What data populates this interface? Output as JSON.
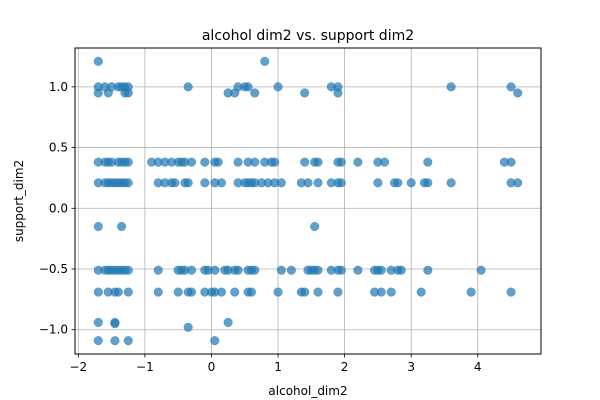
{
  "chart_data": {
    "type": "scatter",
    "title": "alcohol dim2 vs. support dim2",
    "xlabel": "alcohol_dim2",
    "ylabel": "support_dim2",
    "xlim": [
      -2.05,
      4.95
    ],
    "ylim": [
      -1.2,
      1.32
    ],
    "xticks": [
      -2,
      -1,
      0,
      1,
      2,
      3,
      4
    ],
    "yticks": [
      -1.0,
      -0.5,
      0.0,
      0.5,
      1.0
    ],
    "xtick_labels": [
      "−2",
      "−1",
      "0",
      "1",
      "2",
      "3",
      "4"
    ],
    "ytick_labels": [
      "−1.0",
      "−0.5",
      "0.0",
      "0.5",
      "1.0"
    ],
    "grid": true,
    "marker_color": "#1f77b4",
    "marker_alpha": 0.7,
    "points": [
      {
        "x": -1.7,
        "y": 1.21
      },
      {
        "x": -1.7,
        "y": 1.0
      },
      {
        "x": -1.7,
        "y": 0.95
      },
      {
        "x": -1.6,
        "y": 1.0
      },
      {
        "x": -1.55,
        "y": 0.95
      },
      {
        "x": -1.5,
        "y": 1.0
      },
      {
        "x": -1.4,
        "y": 1.0
      },
      {
        "x": -1.35,
        "y": 1.0
      },
      {
        "x": -1.3,
        "y": 0.95
      },
      {
        "x": -1.3,
        "y": 1.0
      },
      {
        "x": -1.25,
        "y": 0.95
      },
      {
        "x": -1.25,
        "y": 1.0
      },
      {
        "x": -0.35,
        "y": 1.0
      },
      {
        "x": 0.25,
        "y": 0.95
      },
      {
        "x": 0.35,
        "y": 0.95
      },
      {
        "x": 0.4,
        "y": 1.0
      },
      {
        "x": 0.5,
        "y": 1.0
      },
      {
        "x": 0.55,
        "y": 1.0
      },
      {
        "x": 0.65,
        "y": 0.95
      },
      {
        "x": 0.8,
        "y": 1.21
      },
      {
        "x": 1.0,
        "y": 1.0
      },
      {
        "x": 1.4,
        "y": 0.95
      },
      {
        "x": 1.8,
        "y": 1.0
      },
      {
        "x": 1.9,
        "y": 0.95
      },
      {
        "x": 1.9,
        "y": 1.0
      },
      {
        "x": 3.6,
        "y": 1.0
      },
      {
        "x": 4.5,
        "y": 1.0
      },
      {
        "x": 4.6,
        "y": 0.95
      },
      {
        "x": -1.7,
        "y": 0.38
      },
      {
        "x": -1.6,
        "y": 0.38
      },
      {
        "x": -1.55,
        "y": 0.38
      },
      {
        "x": -1.5,
        "y": 0.38
      },
      {
        "x": -1.4,
        "y": 0.38
      },
      {
        "x": -1.35,
        "y": 0.38
      },
      {
        "x": -1.3,
        "y": 0.38
      },
      {
        "x": -1.25,
        "y": 0.38
      },
      {
        "x": -0.9,
        "y": 0.38
      },
      {
        "x": -0.8,
        "y": 0.38
      },
      {
        "x": -0.7,
        "y": 0.38
      },
      {
        "x": -0.6,
        "y": 0.38
      },
      {
        "x": -0.5,
        "y": 0.38
      },
      {
        "x": -0.45,
        "y": 0.38
      },
      {
        "x": -0.4,
        "y": 0.38
      },
      {
        "x": -0.3,
        "y": 0.38
      },
      {
        "x": -0.1,
        "y": 0.38
      },
      {
        "x": 0.05,
        "y": 0.38
      },
      {
        "x": 0.1,
        "y": 0.38
      },
      {
        "x": 0.4,
        "y": 0.38
      },
      {
        "x": 0.55,
        "y": 0.38
      },
      {
        "x": 0.65,
        "y": 0.38
      },
      {
        "x": 0.8,
        "y": 0.38
      },
      {
        "x": 0.9,
        "y": 0.38
      },
      {
        "x": 0.95,
        "y": 0.38
      },
      {
        "x": 1.4,
        "y": 0.38
      },
      {
        "x": 1.55,
        "y": 0.38
      },
      {
        "x": 1.6,
        "y": 0.38
      },
      {
        "x": 1.9,
        "y": 0.38
      },
      {
        "x": 1.95,
        "y": 0.38
      },
      {
        "x": 2.2,
        "y": 0.38
      },
      {
        "x": 2.5,
        "y": 0.38
      },
      {
        "x": 2.6,
        "y": 0.38
      },
      {
        "x": 3.25,
        "y": 0.38
      },
      {
        "x": 4.4,
        "y": 0.38
      },
      {
        "x": 4.5,
        "y": 0.38
      },
      {
        "x": -1.7,
        "y": 0.21
      },
      {
        "x": -1.6,
        "y": 0.21
      },
      {
        "x": -1.55,
        "y": 0.21
      },
      {
        "x": -1.5,
        "y": 0.21
      },
      {
        "x": -1.45,
        "y": 0.21
      },
      {
        "x": -1.4,
        "y": 0.21
      },
      {
        "x": -1.35,
        "y": 0.21
      },
      {
        "x": -1.3,
        "y": 0.21
      },
      {
        "x": -1.25,
        "y": 0.21
      },
      {
        "x": -0.8,
        "y": 0.21
      },
      {
        "x": -0.7,
        "y": 0.21
      },
      {
        "x": -0.6,
        "y": 0.21
      },
      {
        "x": -0.55,
        "y": 0.21
      },
      {
        "x": -0.4,
        "y": 0.21
      },
      {
        "x": -0.35,
        "y": 0.21
      },
      {
        "x": -0.1,
        "y": 0.21
      },
      {
        "x": 0.05,
        "y": 0.21
      },
      {
        "x": 0.15,
        "y": 0.21
      },
      {
        "x": 0.4,
        "y": 0.21
      },
      {
        "x": 0.5,
        "y": 0.21
      },
      {
        "x": 0.55,
        "y": 0.21
      },
      {
        "x": 0.6,
        "y": 0.21
      },
      {
        "x": 0.65,
        "y": 0.21
      },
      {
        "x": 0.75,
        "y": 0.21
      },
      {
        "x": 0.85,
        "y": 0.21
      },
      {
        "x": 0.95,
        "y": 0.21
      },
      {
        "x": 1.05,
        "y": 0.21
      },
      {
        "x": 1.35,
        "y": 0.21
      },
      {
        "x": 1.45,
        "y": 0.21
      },
      {
        "x": 1.6,
        "y": 0.21
      },
      {
        "x": 1.8,
        "y": 0.21
      },
      {
        "x": 1.9,
        "y": 0.21
      },
      {
        "x": 1.95,
        "y": 0.21
      },
      {
        "x": 2.5,
        "y": 0.21
      },
      {
        "x": 2.75,
        "y": 0.21
      },
      {
        "x": 2.8,
        "y": 0.21
      },
      {
        "x": 3.0,
        "y": 0.21
      },
      {
        "x": 3.2,
        "y": 0.21
      },
      {
        "x": 3.25,
        "y": 0.21
      },
      {
        "x": 3.6,
        "y": 0.21
      },
      {
        "x": 4.5,
        "y": 0.21
      },
      {
        "x": 4.6,
        "y": 0.21
      },
      {
        "x": -1.7,
        "y": -0.15
      },
      {
        "x": -1.35,
        "y": -0.15
      },
      {
        "x": 1.55,
        "y": -0.15
      },
      {
        "x": -1.7,
        "y": -0.51
      },
      {
        "x": -1.6,
        "y": -0.51
      },
      {
        "x": -1.55,
        "y": -0.51
      },
      {
        "x": -1.5,
        "y": -0.51
      },
      {
        "x": -1.45,
        "y": -0.51
      },
      {
        "x": -1.4,
        "y": -0.51
      },
      {
        "x": -1.35,
        "y": -0.51
      },
      {
        "x": -1.3,
        "y": -0.51
      },
      {
        "x": -1.25,
        "y": -0.51
      },
      {
        "x": -0.8,
        "y": -0.51
      },
      {
        "x": -0.5,
        "y": -0.51
      },
      {
        "x": -0.45,
        "y": -0.51
      },
      {
        "x": -0.4,
        "y": -0.51
      },
      {
        "x": -0.3,
        "y": -0.51
      },
      {
        "x": -0.1,
        "y": -0.51
      },
      {
        "x": -0.05,
        "y": -0.51
      },
      {
        "x": 0.05,
        "y": -0.51
      },
      {
        "x": 0.2,
        "y": -0.51
      },
      {
        "x": 0.25,
        "y": -0.51
      },
      {
        "x": 0.35,
        "y": -0.51
      },
      {
        "x": 0.4,
        "y": -0.51
      },
      {
        "x": 0.55,
        "y": -0.51
      },
      {
        "x": 0.6,
        "y": -0.51
      },
      {
        "x": 0.65,
        "y": -0.51
      },
      {
        "x": 1.05,
        "y": -0.51
      },
      {
        "x": 1.2,
        "y": -0.51
      },
      {
        "x": 1.45,
        "y": -0.51
      },
      {
        "x": 1.5,
        "y": -0.51
      },
      {
        "x": 1.55,
        "y": -0.51
      },
      {
        "x": 1.6,
        "y": -0.51
      },
      {
        "x": 1.8,
        "y": -0.51
      },
      {
        "x": 1.9,
        "y": -0.51
      },
      {
        "x": 1.95,
        "y": -0.51
      },
      {
        "x": 2.2,
        "y": -0.51
      },
      {
        "x": 2.45,
        "y": -0.51
      },
      {
        "x": 2.5,
        "y": -0.51
      },
      {
        "x": 2.55,
        "y": -0.51
      },
      {
        "x": 2.7,
        "y": -0.51
      },
      {
        "x": 2.8,
        "y": -0.51
      },
      {
        "x": 2.85,
        "y": -0.51
      },
      {
        "x": 3.25,
        "y": -0.51
      },
      {
        "x": 4.05,
        "y": -0.51
      },
      {
        "x": -1.7,
        "y": -0.69
      },
      {
        "x": -1.55,
        "y": -0.69
      },
      {
        "x": -1.45,
        "y": -0.69
      },
      {
        "x": -1.4,
        "y": -0.69
      },
      {
        "x": -1.25,
        "y": -0.69
      },
      {
        "x": -0.8,
        "y": -0.69
      },
      {
        "x": -0.5,
        "y": -0.69
      },
      {
        "x": -0.35,
        "y": -0.69
      },
      {
        "x": -0.3,
        "y": -0.69
      },
      {
        "x": -0.1,
        "y": -0.69
      },
      {
        "x": 0.0,
        "y": -0.69
      },
      {
        "x": 0.05,
        "y": -0.69
      },
      {
        "x": 0.15,
        "y": -0.69
      },
      {
        "x": 0.35,
        "y": -0.69
      },
      {
        "x": 0.55,
        "y": -0.69
      },
      {
        "x": 0.6,
        "y": -0.69
      },
      {
        "x": 1.0,
        "y": -0.69
      },
      {
        "x": 1.35,
        "y": -0.69
      },
      {
        "x": 1.4,
        "y": -0.69
      },
      {
        "x": 1.6,
        "y": -0.69
      },
      {
        "x": 1.9,
        "y": -0.69
      },
      {
        "x": 2.45,
        "y": -0.69
      },
      {
        "x": 2.55,
        "y": -0.69
      },
      {
        "x": 2.7,
        "y": -0.69
      },
      {
        "x": 3.15,
        "y": -0.69
      },
      {
        "x": 3.9,
        "y": -0.69
      },
      {
        "x": 4.5,
        "y": -0.69
      },
      {
        "x": -1.7,
        "y": -0.94
      },
      {
        "x": -1.45,
        "y": -0.94
      },
      {
        "x": -1.45,
        "y": -0.95
      },
      {
        "x": -0.35,
        "y": -0.98
      },
      {
        "x": 0.25,
        "y": -0.94
      },
      {
        "x": -1.7,
        "y": -1.09
      },
      {
        "x": -1.45,
        "y": -1.09
      },
      {
        "x": -1.25,
        "y": -1.09
      },
      {
        "x": 0.05,
        "y": -1.09
      }
    ]
  }
}
